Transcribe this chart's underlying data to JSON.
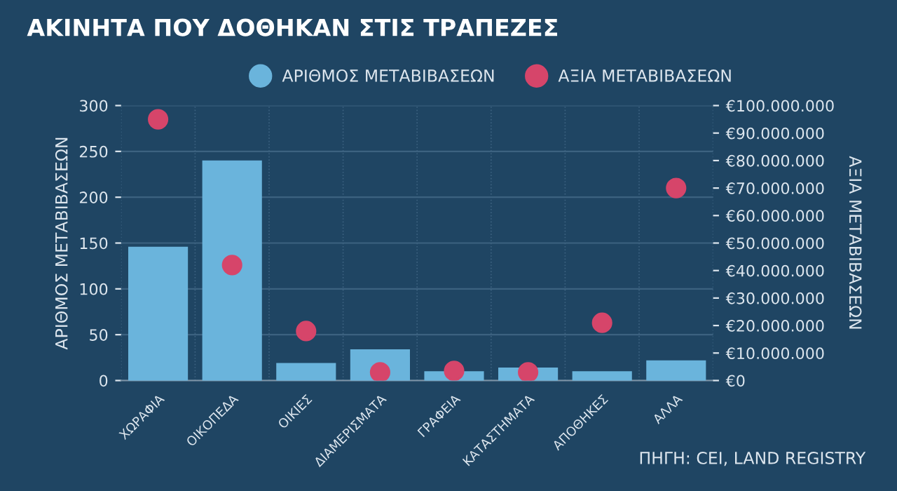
{
  "chart_data": {
    "type": "bar",
    "title": "ΑΚΙΝΗΤΑ ΠΟΥ ΔΟΘΗΚΑΝ ΣΤΙΣ ΤΡΑΠΕΖΕΣ",
    "ylabel": "ΑΡΙΘΜΟΣ ΜΕΤΑΒΙΒΑΣΕΩΝ",
    "y2label": "ΑΞΙΑ ΜΕΤΑΒΙΒΑΣΕΩΝ",
    "annotations": [
      "ΠΗΓΗ: CEI, LAND REGISTRY"
    ],
    "categories": [
      "ΧΩΡΑΦΙΑ",
      "ΟΙΚΟΠΕΔΑ",
      "ΟΙΚΙΕΣ",
      "ΔΙΑΜΕΡΙΣΜΑΤΑ",
      "ΓΡΑΦΕΙΑ",
      "ΚΑΤΑΣΤΗΜΑΤΑ",
      "ΑΠΟΘΗΚΕΣ",
      "ΑΛΛΑ"
    ],
    "series": [
      {
        "name": "ΑΡΙΘΜΟΣ ΜΕΤΑΒΙΒΑΣΕΩΝ",
        "color": "#6ab4dc",
        "values": [
          145,
          239,
          18,
          33,
          9,
          13,
          9,
          21
        ]
      },
      {
        "name": "ΑΞΙΑ ΜΕΤΑΒΙΒΑΣΕΩΝ",
        "type": "scatter",
        "axis": "y2",
        "color": "#d6456a",
        "values": [
          95000000,
          42000000,
          18000000,
          3000000,
          3500000,
          3000000,
          21000000,
          70000000
        ]
      }
    ],
    "ylim": [
      0,
      300
    ],
    "yticks": [
      0,
      50,
      100,
      150,
      200,
      250,
      300
    ],
    "y2lim": [
      0,
      100000000
    ],
    "y2ticks": [
      {
        "value": 0,
        "label": "€0"
      },
      {
        "value": 10000000,
        "label": "€10.000.000"
      },
      {
        "value": 20000000,
        "label": "€20.000.000"
      },
      {
        "value": 30000000,
        "label": "€30.000.000"
      },
      {
        "value": 40000000,
        "label": "€40.000.000"
      },
      {
        "value": 50000000,
        "label": "€50.000.000"
      },
      {
        "value": 60000000,
        "label": "€60.000.000"
      },
      {
        "value": 70000000,
        "label": "€70.000.000"
      },
      {
        "value": 80000000,
        "label": "€80.000.000"
      },
      {
        "value": 90000000,
        "label": "€90.000.000"
      },
      {
        "value": 100000000,
        "label": "€100.000.000"
      }
    ],
    "grid": true,
    "legend": "top",
    "marker": "circle"
  }
}
